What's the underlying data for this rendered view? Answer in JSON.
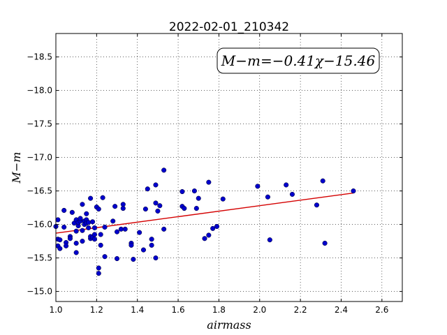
{
  "chart_data": {
    "type": "scatter",
    "title": "2022-02-01_210342",
    "xlabel": "airmass",
    "ylabel": "M−m",
    "xlim": [
      1.0,
      2.7
    ],
    "ylim": [
      -18.85,
      -14.85
    ],
    "y_inverted": true,
    "grid": true,
    "xticks": [
      "1.0",
      "1.2",
      "1.4",
      "1.6",
      "1.8",
      "2.0",
      "2.2",
      "2.4",
      "2.6"
    ],
    "yticks": [
      "−15.0",
      "−15.5",
      "−16.0",
      "−16.5",
      "−17.0",
      "−17.5",
      "−18.0",
      "−18.5"
    ],
    "annotation": "M−m=−0.41χ−15.46",
    "fit": {
      "slope": -0.41,
      "intercept": -15.46,
      "x_range": [
        1.0,
        2.46
      ],
      "color": "#d40000"
    },
    "point_color": "#0000cc",
    "points": [
      [
        1.01,
        -15.68
      ],
      [
        1.02,
        -15.64
      ],
      [
        1.01,
        -15.78
      ],
      [
        1.02,
        -15.77
      ],
      [
        1.0,
        -15.97
      ],
      [
        1.01,
        -16.07
      ],
      [
        1.04,
        -15.96
      ],
      [
        1.04,
        -16.21
      ],
      [
        1.05,
        -15.73
      ],
      [
        1.05,
        -15.68
      ],
      [
        1.07,
        -15.82
      ],
      [
        1.07,
        -15.79
      ],
      [
        1.08,
        -16.18
      ],
      [
        1.09,
        -16.02
      ],
      [
        1.1,
        -15.9
      ],
      [
        1.1,
        -15.58
      ],
      [
        1.1,
        -16.07
      ],
      [
        1.1,
        -15.72
      ],
      [
        1.11,
        -15.98
      ],
      [
        1.11,
        -16.03
      ],
      [
        1.12,
        -16.05
      ],
      [
        1.12,
        -16.09
      ],
      [
        1.13,
        -15.75
      ],
      [
        1.13,
        -15.91
      ],
      [
        1.13,
        -16.3
      ],
      [
        1.14,
        -16.05
      ],
      [
        1.14,
        -16.0
      ],
      [
        1.15,
        -16.07
      ],
      [
        1.15,
        -16.02
      ],
      [
        1.15,
        -16.16
      ],
      [
        1.16,
        -16.03
      ],
      [
        1.16,
        -15.95
      ],
      [
        1.17,
        -15.79
      ],
      [
        1.17,
        -15.82
      ],
      [
        1.17,
        -16.39
      ],
      [
        1.18,
        -16.04
      ],
      [
        1.18,
        -15.81
      ],
      [
        1.19,
        -15.85
      ],
      [
        1.19,
        -15.95
      ],
      [
        1.19,
        -15.78
      ],
      [
        1.2,
        -16.26
      ],
      [
        1.21,
        -16.23
      ],
      [
        1.21,
        -15.27
      ],
      [
        1.21,
        -15.35
      ],
      [
        1.22,
        -15.85
      ],
      [
        1.22,
        -15.69
      ],
      [
        1.23,
        -16.4
      ],
      [
        1.24,
        -15.52
      ],
      [
        1.24,
        -15.96
      ],
      [
        1.28,
        -16.05
      ],
      [
        1.29,
        -16.27
      ],
      [
        1.3,
        -15.89
      ],
      [
        1.3,
        -15.49
      ],
      [
        1.32,
        -15.93
      ],
      [
        1.33,
        -16.3
      ],
      [
        1.33,
        -16.24
      ],
      [
        1.34,
        -15.93
      ],
      [
        1.37,
        -15.72
      ],
      [
        1.37,
        -15.69
      ],
      [
        1.38,
        -15.48
      ],
      [
        1.41,
        -15.88
      ],
      [
        1.43,
        -15.62
      ],
      [
        1.44,
        -16.23
      ],
      [
        1.45,
        -16.53
      ],
      [
        1.47,
        -15.69
      ],
      [
        1.47,
        -15.78
      ],
      [
        1.49,
        -16.59
      ],
      [
        1.49,
        -16.32
      ],
      [
        1.49,
        -15.5
      ],
      [
        1.5,
        -16.2
      ],
      [
        1.51,
        -16.28
      ],
      [
        1.53,
        -15.93
      ],
      [
        1.53,
        -16.81
      ],
      [
        1.62,
        -16.27
      ],
      [
        1.62,
        -16.49
      ],
      [
        1.63,
        -16.24
      ],
      [
        1.68,
        -16.5
      ],
      [
        1.69,
        -16.24
      ],
      [
        1.7,
        -16.39
      ],
      [
        1.73,
        -15.79
      ],
      [
        1.75,
        -15.84
      ],
      [
        1.75,
        -16.63
      ],
      [
        1.77,
        -15.94
      ],
      [
        1.79,
        -15.97
      ],
      [
        1.82,
        -16.38
      ],
      [
        1.99,
        -16.57
      ],
      [
        2.04,
        -16.41
      ],
      [
        2.05,
        -15.77
      ],
      [
        2.13,
        -16.59
      ],
      [
        2.16,
        -16.45
      ],
      [
        2.28,
        -16.29
      ],
      [
        2.31,
        -16.65
      ],
      [
        2.32,
        -15.72
      ],
      [
        2.46,
        -16.5
      ]
    ]
  }
}
